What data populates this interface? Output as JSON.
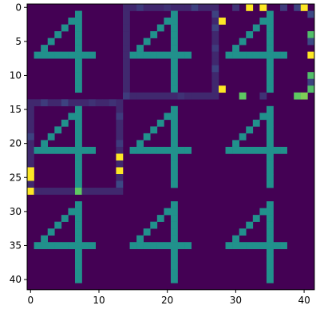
{
  "chart_data": {
    "type": "heatmap",
    "colormap": "viridis",
    "colormap_stops": [
      "#440154",
      "#3b528b",
      "#21918c",
      "#5ec962",
      "#fde725"
    ],
    "background_value": 0.0,
    "value_range": [
      0,
      1
    ],
    "grid": false,
    "rows": 42,
    "cols": 42,
    "x_ticks": [
      0,
      10,
      20,
      30,
      40
    ],
    "y_ticks": [
      0,
      5,
      10,
      15,
      20,
      25,
      30,
      35,
      40
    ],
    "x_tick_labels": [
      "0",
      "10",
      "20",
      "30",
      "40"
    ],
    "y_tick_labels": [
      "0",
      "5",
      "10",
      "15",
      "20",
      "25",
      "30",
      "35",
      "40"
    ],
    "tile": {
      "size": 14,
      "layout": "3x3",
      "digit": "4",
      "digit_value": 0.5,
      "digit_cells": [
        [
          1,
          7
        ],
        [
          2,
          6
        ],
        [
          2,
          7
        ],
        [
          3,
          5
        ],
        [
          3,
          7
        ],
        [
          4,
          4
        ],
        [
          4,
          7
        ],
        [
          5,
          3
        ],
        [
          5,
          7
        ],
        [
          6,
          2
        ],
        [
          6,
          7
        ],
        [
          7,
          1
        ],
        [
          7,
          2
        ],
        [
          7,
          3
        ],
        [
          7,
          4
        ],
        [
          7,
          5
        ],
        [
          7,
          6
        ],
        [
          7,
          7
        ],
        [
          7,
          8
        ],
        [
          7,
          9
        ],
        [
          8,
          7
        ],
        [
          9,
          7
        ],
        [
          10,
          7
        ],
        [
          11,
          7
        ],
        [
          12,
          7
        ]
      ]
    },
    "outlines": [
      {
        "rows": [
          0,
          13
        ],
        "cols": [
          14,
          27
        ],
        "value": 0.12
      },
      {
        "rows": [
          14,
          27
        ],
        "cols": [
          0,
          13
        ],
        "value": 0.12
      }
    ],
    "highlight_cells": [
      [
        0,
        32,
        1.0
      ],
      [
        0,
        34,
        1.0
      ],
      [
        0,
        40,
        1.0
      ],
      [
        2,
        28,
        1.0
      ],
      [
        12,
        28,
        1.0
      ],
      [
        4,
        41,
        0.7
      ],
      [
        7,
        41,
        1.0
      ],
      [
        10,
        41,
        0.7
      ],
      [
        12,
        41,
        0.7
      ],
      [
        13,
        31,
        0.75
      ],
      [
        13,
        39,
        0.75
      ],
      [
        13,
        40,
        0.8
      ],
      [
        22,
        13,
        1.0
      ],
      [
        24,
        13,
        1.0
      ],
      [
        24,
        0,
        1.0
      ],
      [
        25,
        0,
        1.0
      ],
      [
        27,
        0,
        1.0
      ],
      [
        27,
        7,
        0.75
      ]
    ],
    "noise_cells": [
      [
        0,
        16,
        0.18
      ],
      [
        0,
        20,
        0.15
      ],
      [
        0,
        24,
        0.2
      ],
      [
        0,
        30,
        0.15
      ],
      [
        0,
        37,
        0.18
      ],
      [
        0,
        39,
        0.2
      ],
      [
        1,
        27,
        0.2
      ],
      [
        1,
        41,
        0.22
      ],
      [
        3,
        27,
        0.2
      ],
      [
        5,
        41,
        0.22
      ],
      [
        6,
        27,
        0.18
      ],
      [
        9,
        27,
        0.2
      ],
      [
        11,
        41,
        0.2
      ],
      [
        13,
        14,
        0.18
      ],
      [
        13,
        22,
        0.15
      ],
      [
        13,
        34,
        0.15
      ],
      [
        14,
        2,
        0.18
      ],
      [
        14,
        5,
        0.2
      ],
      [
        14,
        9,
        0.15
      ],
      [
        14,
        12,
        0.15
      ],
      [
        16,
        13,
        0.18
      ],
      [
        19,
        0,
        0.2
      ],
      [
        20,
        13,
        0.18
      ],
      [
        26,
        13,
        0.22
      ]
    ]
  }
}
